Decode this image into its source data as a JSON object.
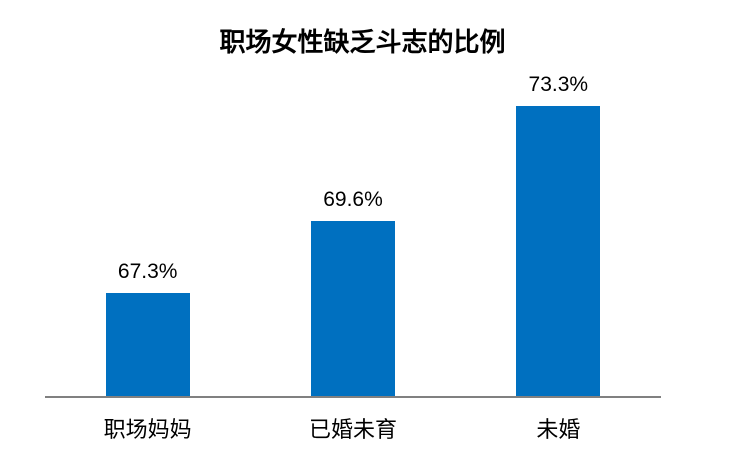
{
  "chart_data": {
    "type": "bar",
    "title": "职场女性缺乏斗志的比例",
    "categories": [
      "职场妈妈",
      "已婚未育",
      "未婚"
    ],
    "values": [
      67.3,
      69.6,
      73.3
    ],
    "value_labels": [
      "67.3%",
      "69.6%",
      "73.3%"
    ],
    "xlabel": "",
    "ylabel": "",
    "ylim": [
      64,
      74
    ],
    "grid": false,
    "legend": false,
    "y_axis_visible": false,
    "bar_color": "#0070C0",
    "axis_color": "#808080",
    "text_color": "#000000"
  }
}
